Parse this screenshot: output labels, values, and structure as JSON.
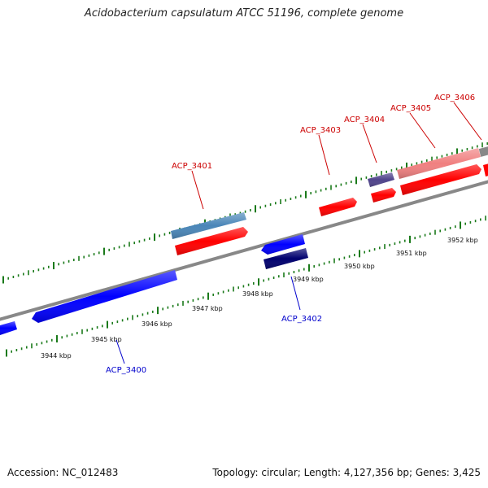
{
  "title": "Acidobacterium capsulatum ATCC 51196, complete genome",
  "footer": {
    "accession": "Accession: NC_012483",
    "summary": "Topology: circular; Length: 4,127,356 bp; Genes: 3,425"
  },
  "colors": {
    "backbone": "#888888",
    "tick": "#1a7a1a",
    "forward_label": "#cc0000",
    "reverse_label": "#0000cc",
    "cds_forward": "#ff0000",
    "cds_reverse": "#0000ff",
    "gene_forward": "#4a86b8",
    "gene_reverse": "#00006e",
    "gene_purple": "#50448c",
    "gene_pink": "#f08080"
  },
  "scale_labels_lower": [
    "3944 kbp",
    "3945 kbp",
    "3946 kbp",
    "3947 kbp",
    "3948 kbp",
    "3949 kbp",
    "3950 kbp",
    "3951 kbp",
    "3952 kbp"
  ],
  "gene_labels": [
    {
      "name": "ACP_3400",
      "strand": "reverse"
    },
    {
      "name": "ACP_3401",
      "strand": "forward"
    },
    {
      "name": "ACP_3402",
      "strand": "reverse"
    },
    {
      "name": "ACP_3403",
      "strand": "forward"
    },
    {
      "name": "ACP_3404",
      "strand": "forward"
    },
    {
      "name": "ACP_3405",
      "strand": "forward"
    },
    {
      "name": "ACP_3406",
      "strand": "forward"
    }
  ]
}
